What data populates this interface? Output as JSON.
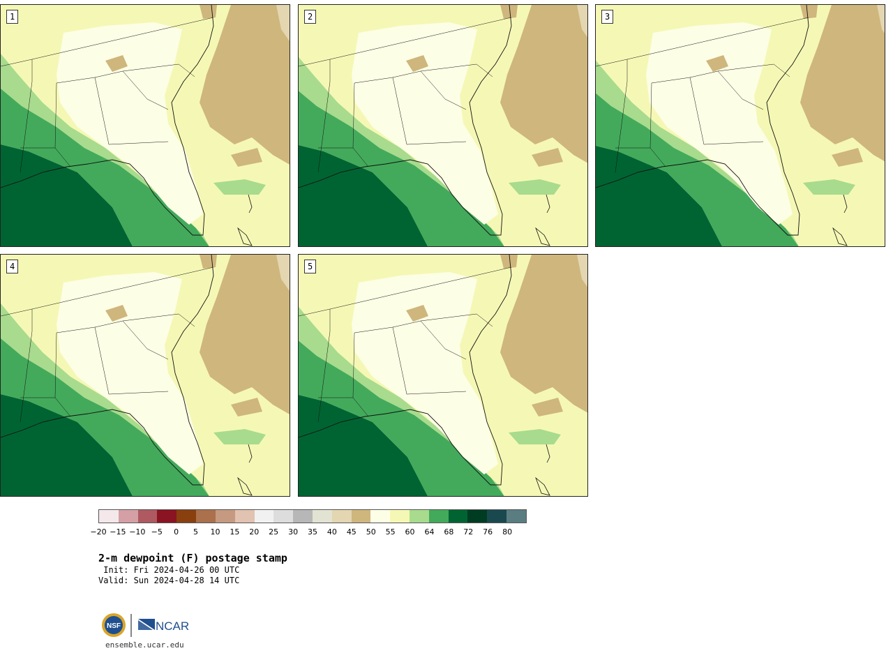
{
  "panels": [
    {
      "label": "1"
    },
    {
      "label": "2"
    },
    {
      "label": "3"
    },
    {
      "label": "4"
    },
    {
      "label": "5"
    }
  ],
  "legend": {
    "ticks": [
      "−20",
      "−15",
      "−10",
      "−5",
      "0",
      "5",
      "10",
      "15",
      "20",
      "25",
      "30",
      "35",
      "40",
      "45",
      "50",
      "55",
      "60",
      "64",
      "68",
      "72",
      "76",
      "80"
    ],
    "colors": [
      "#f4e8ea",
      "#d4a0a5",
      "#ae5a60",
      "#8a1421",
      "#8a400e",
      "#ab704c",
      "#c59a80",
      "#e2c2b0",
      "#f1f1f1",
      "#dddddd",
      "#b7b7b7",
      "#e3e3d3",
      "#e3d6b1",
      "#cfb67c",
      "#fdfee6",
      "#f5f8b5",
      "#a8db8d",
      "#43aa5b",
      "#006432",
      "#003c22",
      "#19494f",
      "#5a7d82"
    ]
  },
  "title": "2-m dewpoint (F) postage stamp",
  "init": " Init: Fri 2024-04-26 00 UTC",
  "valid": "Valid: Sun 2024-04-28 14 UTC",
  "logos": {
    "nsf": "NSF",
    "ncar": "NCAR"
  },
  "url": "ensemble.ucar.edu"
}
